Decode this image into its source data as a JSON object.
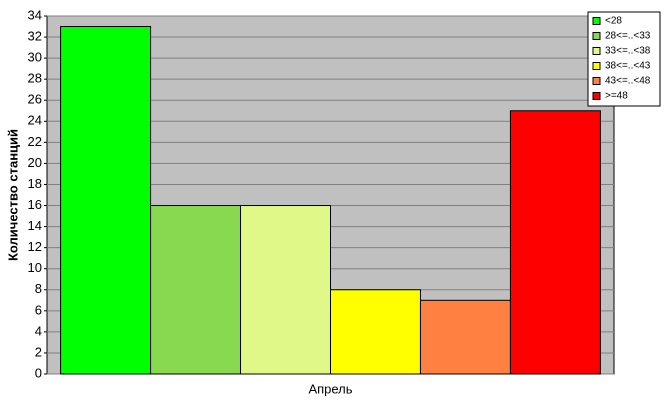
{
  "chart_data": {
    "type": "bar",
    "y_label": "Количество станций",
    "categories": [
      "Апрель"
    ],
    "series": [
      {
        "name": "<28",
        "color": "#00ff00",
        "values": [
          33
        ]
      },
      {
        "name": "28<=..<33",
        "color": "#88d850",
        "values": [
          16
        ]
      },
      {
        "name": "33<=..<38",
        "color": "#e0f888",
        "values": [
          16
        ]
      },
      {
        "name": "38<=..<43",
        "color": "#ffff00",
        "values": [
          8
        ]
      },
      {
        "name": "43<=..<48",
        "color": "#ff8040",
        "values": [
          7
        ]
      },
      {
        "name": ">=48",
        "color": "#ff0000",
        "values": [
          25
        ]
      }
    ],
    "ylim": [
      0,
      34
    ],
    "yticks": [
      0,
      2,
      4,
      6,
      8,
      10,
      12,
      14,
      16,
      18,
      20,
      22,
      24,
      26,
      28,
      30,
      32,
      34
    ],
    "grid": true,
    "legend": "top-right"
  }
}
